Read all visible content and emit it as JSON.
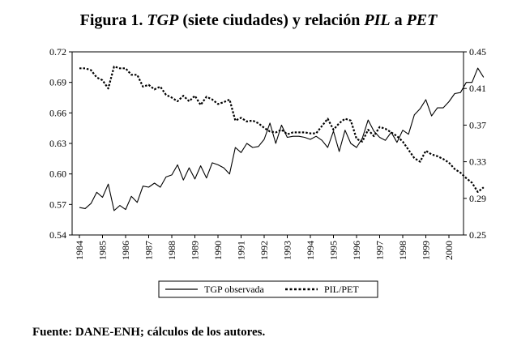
{
  "title": {
    "prefix": "Figura 1. ",
    "tgp": "TGP",
    "mid1": " (siete ciudades) y relación ",
    "pil": "PIL",
    "mid2": " a ",
    "pet": "PET"
  },
  "source": "Fuente: DANE-ENH; cálculos de los autores.",
  "chart_data": {
    "type": "line",
    "title": "Figura 1. TGP (siete ciudades) y relación PIL a PET",
    "xlabel": "",
    "ylabel_left": "",
    "ylabel_right": "",
    "x_ticks": [
      "1984",
      "1985",
      "1986",
      "1987",
      "1988",
      "1989",
      "1990",
      "1991",
      "1992",
      "1993",
      "1994",
      "1995",
      "1996",
      "1997",
      "1998",
      "1999",
      "2000"
    ],
    "x_start": 1984,
    "x_step": 0.25,
    "y_left": {
      "min": 0.54,
      "max": 0.72,
      "ticks": [
        "0.54",
        "0.57",
        "0.60",
        "0.63",
        "0.66",
        "0.69",
        "0.72"
      ]
    },
    "y_right": {
      "min": 0.25,
      "max": 0.45,
      "ticks": [
        "0.25",
        "0.29",
        "0.33",
        "0.37",
        "0.41",
        "0.45"
      ]
    },
    "legend_position": "bottom",
    "series": [
      {
        "name": "TGP observada",
        "axis": "left",
        "style": "solid",
        "values": [
          0.567,
          0.566,
          0.571,
          0.582,
          0.577,
          0.59,
          0.564,
          0.569,
          0.565,
          0.578,
          0.572,
          0.588,
          0.587,
          0.591,
          0.587,
          0.597,
          0.599,
          0.609,
          0.594,
          0.606,
          0.595,
          0.608,
          0.596,
          0.611,
          0.609,
          0.606,
          0.6,
          0.626,
          0.621,
          0.63,
          0.626,
          0.627,
          0.634,
          0.65,
          0.63,
          0.648,
          0.636,
          0.637,
          0.637,
          0.636,
          0.634,
          0.637,
          0.633,
          0.626,
          0.642,
          0.622,
          0.643,
          0.63,
          0.626,
          0.635,
          0.653,
          0.642,
          0.636,
          0.633,
          0.641,
          0.631,
          0.643,
          0.639,
          0.658,
          0.664,
          0.673,
          0.657,
          0.665,
          0.665,
          0.671,
          0.679,
          0.68,
          0.69,
          0.69,
          0.704,
          0.695
        ]
      },
      {
        "name": "PIL/PET",
        "axis": "right",
        "style": "dashed",
        "values": [
          0.432,
          0.432,
          0.43,
          0.422,
          0.419,
          0.41,
          0.434,
          0.432,
          0.432,
          0.425,
          0.425,
          0.412,
          0.414,
          0.409,
          0.412,
          0.403,
          0.4,
          0.396,
          0.402,
          0.396,
          0.402,
          0.392,
          0.401,
          0.398,
          0.393,
          0.395,
          0.398,
          0.375,
          0.378,
          0.374,
          0.375,
          0.372,
          0.367,
          0.363,
          0.362,
          0.365,
          0.36,
          0.362,
          0.362,
          0.362,
          0.361,
          0.361,
          0.369,
          0.377,
          0.365,
          0.372,
          0.377,
          0.375,
          0.355,
          0.352,
          0.365,
          0.358,
          0.368,
          0.366,
          0.362,
          0.358,
          0.352,
          0.343,
          0.334,
          0.33,
          0.342,
          0.338,
          0.336,
          0.333,
          0.329,
          0.322,
          0.318,
          0.312,
          0.307,
          0.297,
          0.302
        ]
      }
    ]
  }
}
